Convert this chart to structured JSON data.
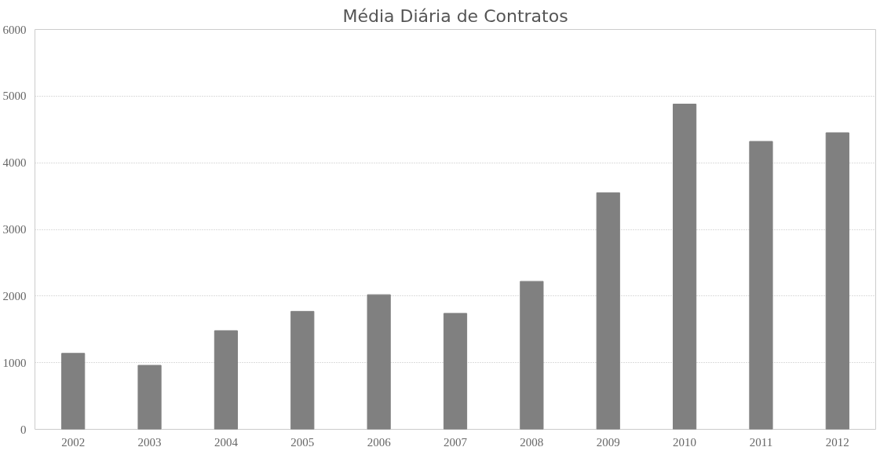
{
  "chart_data": {
    "type": "bar",
    "title": "Média Diária de Contratos",
    "categories": [
      "2002",
      "2003",
      "2004",
      "2005",
      "2006",
      "2007",
      "2008",
      "2009",
      "2010",
      "2011",
      "2012"
    ],
    "values": [
      1140,
      960,
      1480,
      1770,
      2020,
      1740,
      2220,
      3550,
      4880,
      4320,
      4450
    ],
    "color": "#808080",
    "ylim": [
      0,
      6000
    ],
    "yticks": [
      0,
      1000,
      2000,
      3000,
      4000,
      5000,
      6000
    ],
    "grid": "y"
  }
}
